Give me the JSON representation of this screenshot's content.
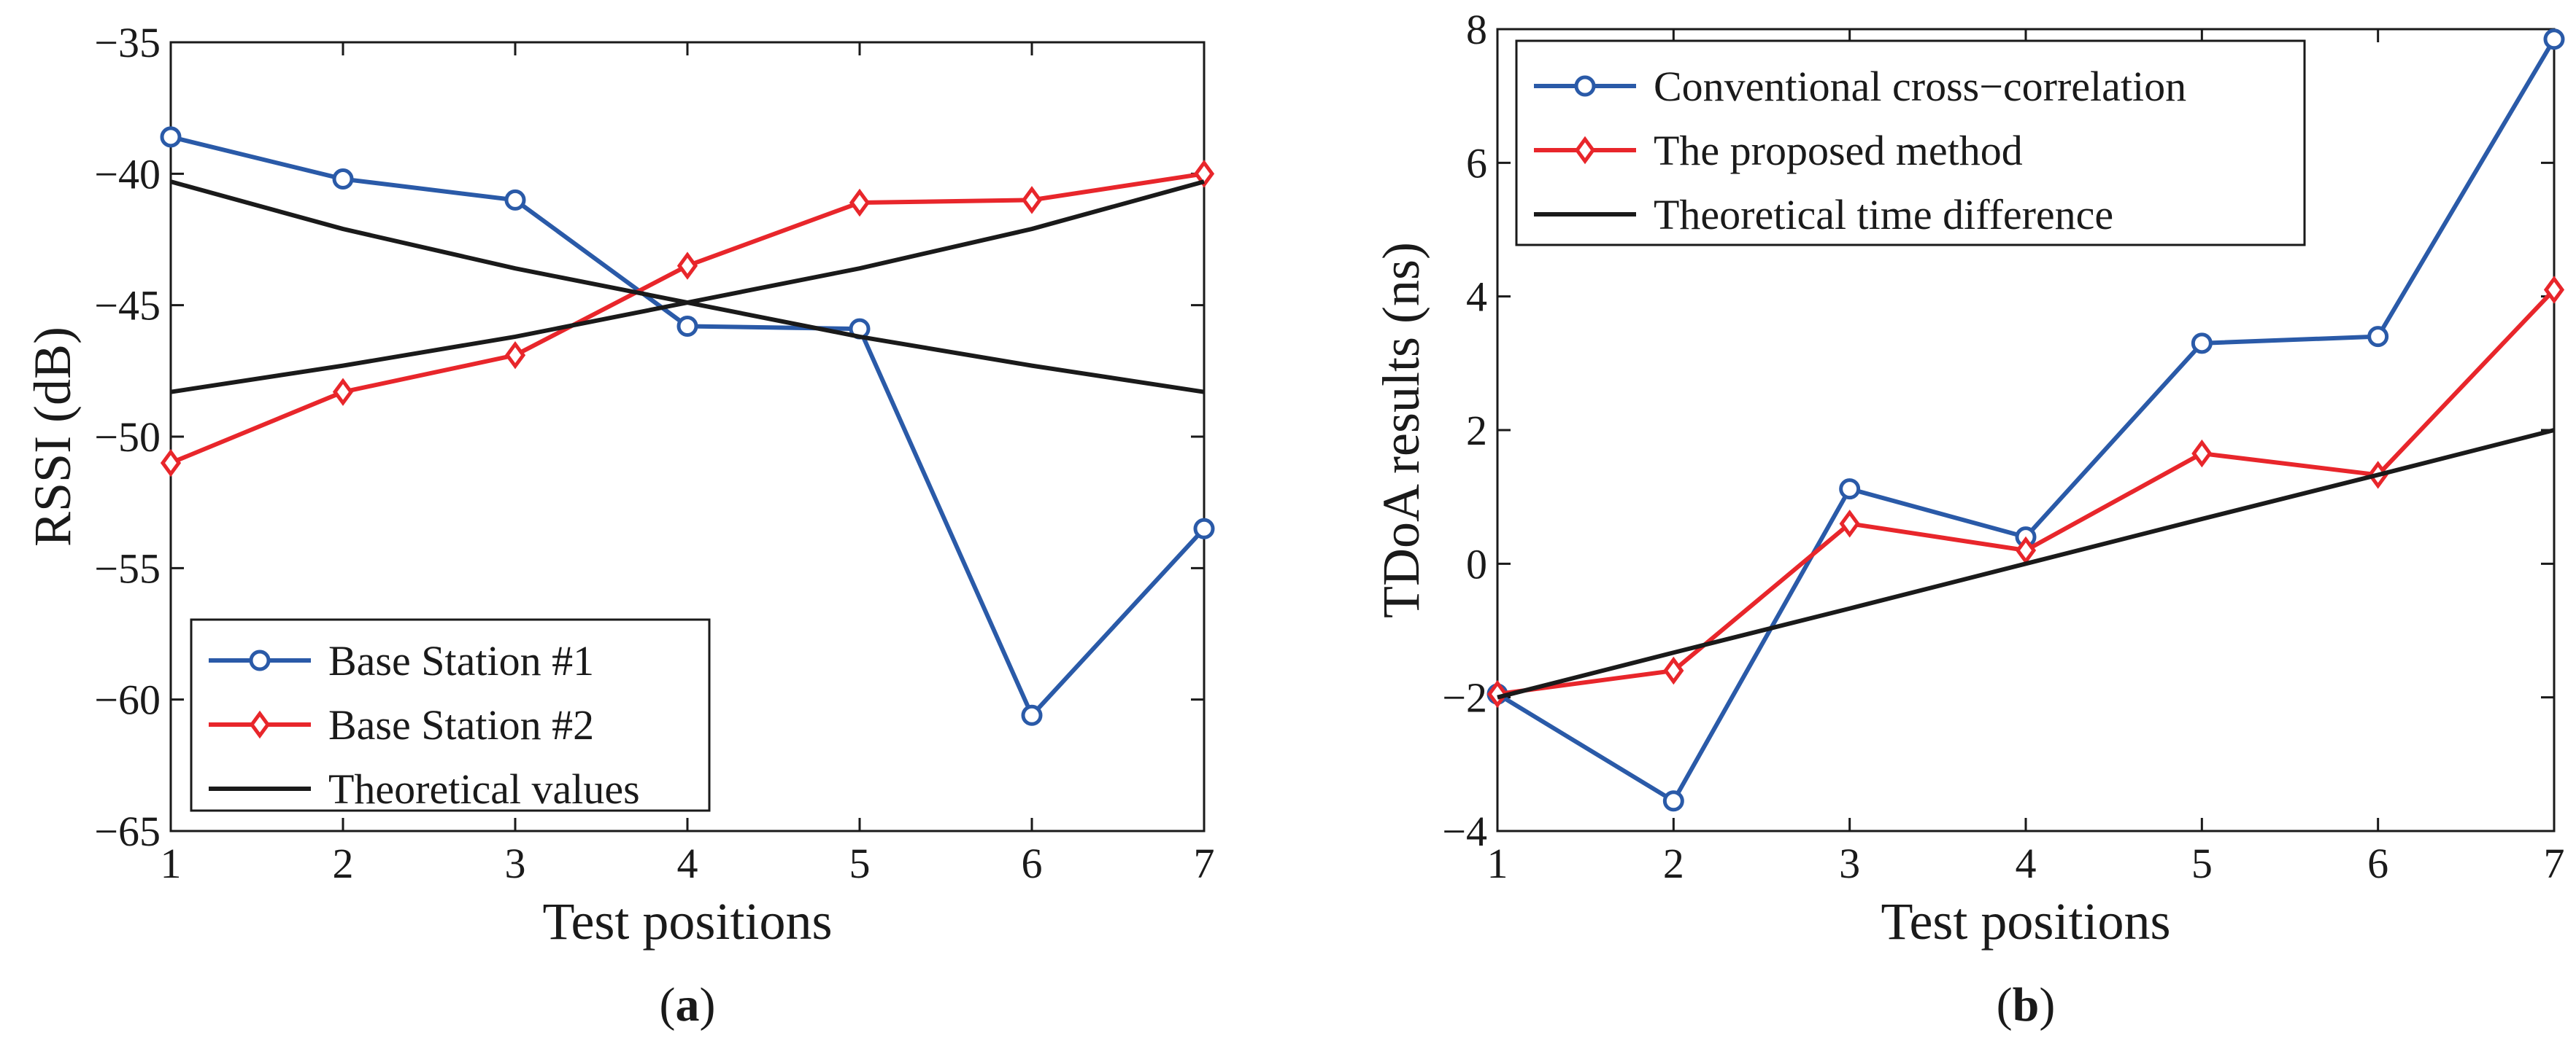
{
  "chart_data": [
    {
      "id": "a",
      "type": "line",
      "panel_label": "a",
      "xlabel": "Test positions",
      "ylabel": "RSSI (dB)",
      "xlim": [
        1,
        7
      ],
      "ylim": [
        -65,
        -35
      ],
      "xticks": [
        "1",
        "2",
        "3",
        "4",
        "5",
        "6",
        "7"
      ],
      "yticks": [
        "−35",
        "−40",
        "−45",
        "−50",
        "−55",
        "−60",
        "−65"
      ],
      "ytick_values": [
        -35,
        -40,
        -45,
        -50,
        -55,
        -60,
        -65
      ],
      "x": [
        1,
        2,
        3,
        4,
        5,
        6,
        7
      ],
      "series": [
        {
          "name": "Base Station #1",
          "color": "#2a5aa8",
          "marker": "circle",
          "values": [
            -38.6,
            -40.2,
            -41.0,
            -45.8,
            -45.9,
            -60.6,
            -53.5
          ]
        },
        {
          "name": "Base Station #2",
          "color": "#e8262b",
          "marker": "diamond",
          "values": [
            -51.0,
            -48.3,
            -46.9,
            -43.5,
            -41.1,
            -41.0,
            -40.0
          ]
        },
        {
          "name": "Theoretical values",
          "color": "#1a1a1a",
          "marker": "none",
          "values": [
            -40.3,
            -42.1,
            -43.6,
            -44.9,
            -46.2,
            -47.3,
            -48.3
          ]
        },
        {
          "name": "Theoretical values",
          "color": "#1a1a1a",
          "marker": "none",
          "legend": false,
          "values": [
            -48.3,
            -47.3,
            -46.2,
            -44.9,
            -43.6,
            -42.1,
            -40.3
          ]
        }
      ],
      "legend_position": "bottom-left"
    },
    {
      "id": "b",
      "type": "line",
      "panel_label": "b",
      "xlabel": "Test positions",
      "ylabel": "TDoA results (ns)",
      "xlim": [
        1,
        7
      ],
      "ylim": [
        -4,
        8
      ],
      "xticks": [
        "1",
        "2",
        "3",
        "4",
        "5",
        "6",
        "7"
      ],
      "yticks": [
        "8",
        "6",
        "4",
        "2",
        "0",
        "−2",
        "−4"
      ],
      "ytick_values": [
        8,
        6,
        4,
        2,
        0,
        -2,
        -4
      ],
      "x": [
        1,
        2,
        3,
        4,
        5,
        6,
        7
      ],
      "series": [
        {
          "name": "Conventional cross−correlation",
          "color": "#2a5aa8",
          "marker": "circle",
          "values": [
            -1.95,
            -3.55,
            1.12,
            0.4,
            3.3,
            3.4,
            7.85
          ]
        },
        {
          "name": "The proposed method",
          "color": "#e8262b",
          "marker": "diamond",
          "values": [
            -1.95,
            -1.6,
            0.6,
            0.2,
            1.65,
            1.33,
            4.1
          ]
        },
        {
          "name": "Theoretical time difference",
          "color": "#1a1a1a",
          "marker": "none",
          "values": [
            -2.0,
            -1.33,
            -0.67,
            0.0,
            0.67,
            1.33,
            2.0
          ]
        }
      ],
      "legend_position": "top-left"
    }
  ]
}
